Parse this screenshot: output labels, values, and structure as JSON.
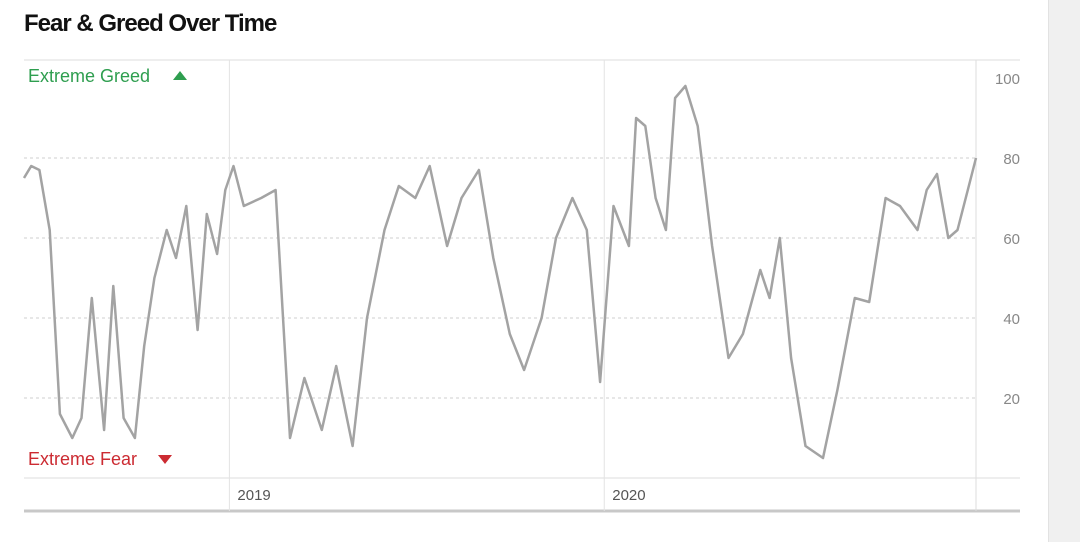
{
  "chart_data": {
    "type": "line",
    "title": "Fear & Greed Over Time",
    "ylim": [
      0,
      100
    ],
    "y_ticks": [
      20,
      40,
      60,
      80,
      100
    ],
    "x_tick_labels": [
      "2019",
      "2020"
    ],
    "grid": true,
    "annotations": {
      "extreme_greed": "Extreme Greed",
      "extreme_fear": "Extreme Fear"
    },
    "colors": {
      "line": "#a3a3a3",
      "greed": "#2e9e4f",
      "fear": "#cc2b32"
    },
    "series": [
      {
        "x": [
          "2018-06-15",
          "2018-06-22",
          "2018-06-30",
          "2018-07-10",
          "2018-07-20",
          "2018-08-01",
          "2018-08-10",
          "2018-08-20",
          "2018-09-01",
          "2018-09-10",
          "2018-09-20",
          "2018-10-01",
          "2018-10-10",
          "2018-10-20",
          "2018-11-01",
          "2018-11-10",
          "2018-11-20",
          "2018-12-01",
          "2018-12-10",
          "2018-12-20",
          "2018-12-28",
          "2019-01-05",
          "2019-01-15",
          "2019-02-01",
          "2019-02-15",
          "2019-03-01",
          "2019-03-15",
          "2019-04-01",
          "2019-04-15",
          "2019-05-01",
          "2019-05-15",
          "2019-06-01",
          "2019-06-15",
          "2019-07-01",
          "2019-07-15",
          "2019-08-01",
          "2019-08-15",
          "2019-09-01",
          "2019-09-15",
          "2019-10-01",
          "2019-10-15",
          "2019-11-01",
          "2019-11-15",
          "2019-12-01",
          "2019-12-15",
          "2019-12-28",
          "2020-01-10",
          "2020-01-25",
          "2020-02-01",
          "2020-02-10",
          "2020-02-20",
          "2020-03-01",
          "2020-03-10",
          "2020-03-20",
          "2020-04-01",
          "2020-04-15",
          "2020-05-01",
          "2020-05-15",
          "2020-06-01",
          "2020-06-10",
          "2020-06-20",
          "2020-07-01",
          "2020-07-15",
          "2020-08-01",
          "2020-08-15",
          "2020-09-01",
          "2020-09-15",
          "2020-10-01",
          "2020-10-15",
          "2020-11-01",
          "2020-11-10",
          "2020-11-20",
          "2020-12-01",
          "2020-12-10",
          "2020-12-20",
          "2020-12-28"
        ],
        "y": [
          75,
          78,
          77,
          62,
          16,
          10,
          15,
          45,
          12,
          48,
          15,
          10,
          33,
          50,
          62,
          55,
          68,
          37,
          66,
          56,
          72,
          78,
          68,
          70,
          72,
          10,
          25,
          12,
          28,
          8,
          40,
          62,
          73,
          70,
          78,
          58,
          70,
          77,
          55,
          36,
          27,
          40,
          60,
          70,
          62,
          24,
          68,
          58,
          90,
          88,
          70,
          62,
          95,
          98,
          88,
          58,
          30,
          36,
          52,
          45,
          60,
          30,
          8,
          5,
          22,
          45,
          44,
          70,
          68,
          62,
          72,
          76,
          60,
          62,
          72,
          80
        ]
      }
    ]
  }
}
